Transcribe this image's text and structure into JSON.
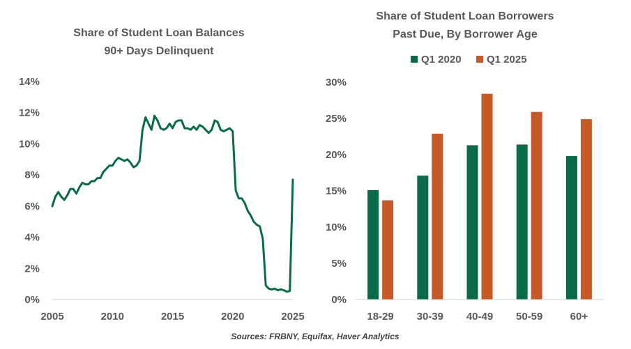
{
  "source_note": "Sources: FRBNY, Equifax, Haver Analytics",
  "chart_data": [
    {
      "type": "line",
      "title_lines": [
        "Share of Student Loan Balances",
        "90+ Days Delinquent"
      ],
      "xlabel": "",
      "ylabel": "",
      "xlim": [
        2005,
        2025
      ],
      "ylim": [
        0,
        14
      ],
      "x_ticks": [
        2005,
        2010,
        2015,
        2020,
        2025
      ],
      "y_ticks": [
        0,
        2,
        4,
        6,
        8,
        10,
        12,
        14
      ],
      "y_tick_suffix": "%",
      "grid": false,
      "color": "#0a6b48",
      "series": [
        {
          "x": [
            2005.0,
            2005.25,
            2005.5,
            2005.75,
            2006.0,
            2006.25,
            2006.5,
            2006.75,
            2007.0,
            2007.25,
            2007.5,
            2007.75,
            2008.0,
            2008.25,
            2008.5,
            2008.75,
            2009.0,
            2009.25,
            2009.5,
            2009.75,
            2010.0,
            2010.25,
            2010.5,
            2010.75,
            2011.0,
            2011.25,
            2011.5,
            2011.75,
            2012.0,
            2012.25,
            2012.5,
            2012.75,
            2013.0,
            2013.25,
            2013.5,
            2013.75,
            2014.0,
            2014.25,
            2014.5,
            2014.75,
            2015.0,
            2015.25,
            2015.5,
            2015.75,
            2016.0,
            2016.25,
            2016.5,
            2016.75,
            2017.0,
            2017.25,
            2017.5,
            2017.75,
            2018.0,
            2018.25,
            2018.5,
            2018.75,
            2019.0,
            2019.25,
            2019.5,
            2019.75,
            2020.0,
            2020.25,
            2020.5,
            2020.75,
            2021.0,
            2021.25,
            2021.5,
            2021.75,
            2022.0,
            2022.25,
            2022.5,
            2022.75,
            2023.0,
            2023.25,
            2023.5,
            2023.75,
            2024.0,
            2024.25,
            2024.5,
            2024.75,
            2025.0
          ],
          "y": [
            6.0,
            6.6,
            6.9,
            6.6,
            6.4,
            6.7,
            7.1,
            7.1,
            6.8,
            7.2,
            7.5,
            7.4,
            7.4,
            7.6,
            7.6,
            7.8,
            7.8,
            8.2,
            8.4,
            8.6,
            8.6,
            8.9,
            9.1,
            9.0,
            8.9,
            9.0,
            8.8,
            8.5,
            8.6,
            8.9,
            10.9,
            11.7,
            11.3,
            10.9,
            11.8,
            11.5,
            11.0,
            10.9,
            11.0,
            11.3,
            11.0,
            11.4,
            11.5,
            11.5,
            11.0,
            11.0,
            10.9,
            11.1,
            10.9,
            11.2,
            11.1,
            10.9,
            10.7,
            10.9,
            11.5,
            11.4,
            10.9,
            10.8,
            10.9,
            11.0,
            10.8,
            7.0,
            6.5,
            6.5,
            6.2,
            5.7,
            5.4,
            5.0,
            4.8,
            4.7,
            3.9,
            0.9,
            0.7,
            0.65,
            0.7,
            0.6,
            0.65,
            0.6,
            0.5,
            0.55,
            7.7
          ]
        }
      ]
    },
    {
      "type": "bar",
      "title_lines": [
        "Share of Student Loan Borrowers",
        "Past Due, By Borrower Age"
      ],
      "xlabel": "",
      "ylabel": "",
      "categories": [
        "18-29",
        "30-39",
        "40-49",
        "50-59",
        "60+"
      ],
      "ylim": [
        0,
        30
      ],
      "y_ticks": [
        0,
        5,
        10,
        15,
        20,
        25,
        30
      ],
      "y_tick_suffix": "%",
      "grid": false,
      "legend_position": "top",
      "series": [
        {
          "name": "Q1 2020",
          "color": "#0a6b48",
          "values": [
            15.1,
            17.1,
            21.3,
            21.4,
            19.8
          ]
        },
        {
          "name": "Q1 2025",
          "color": "#c55a28",
          "values": [
            13.7,
            22.9,
            28.4,
            25.9,
            24.9
          ]
        }
      ]
    }
  ]
}
